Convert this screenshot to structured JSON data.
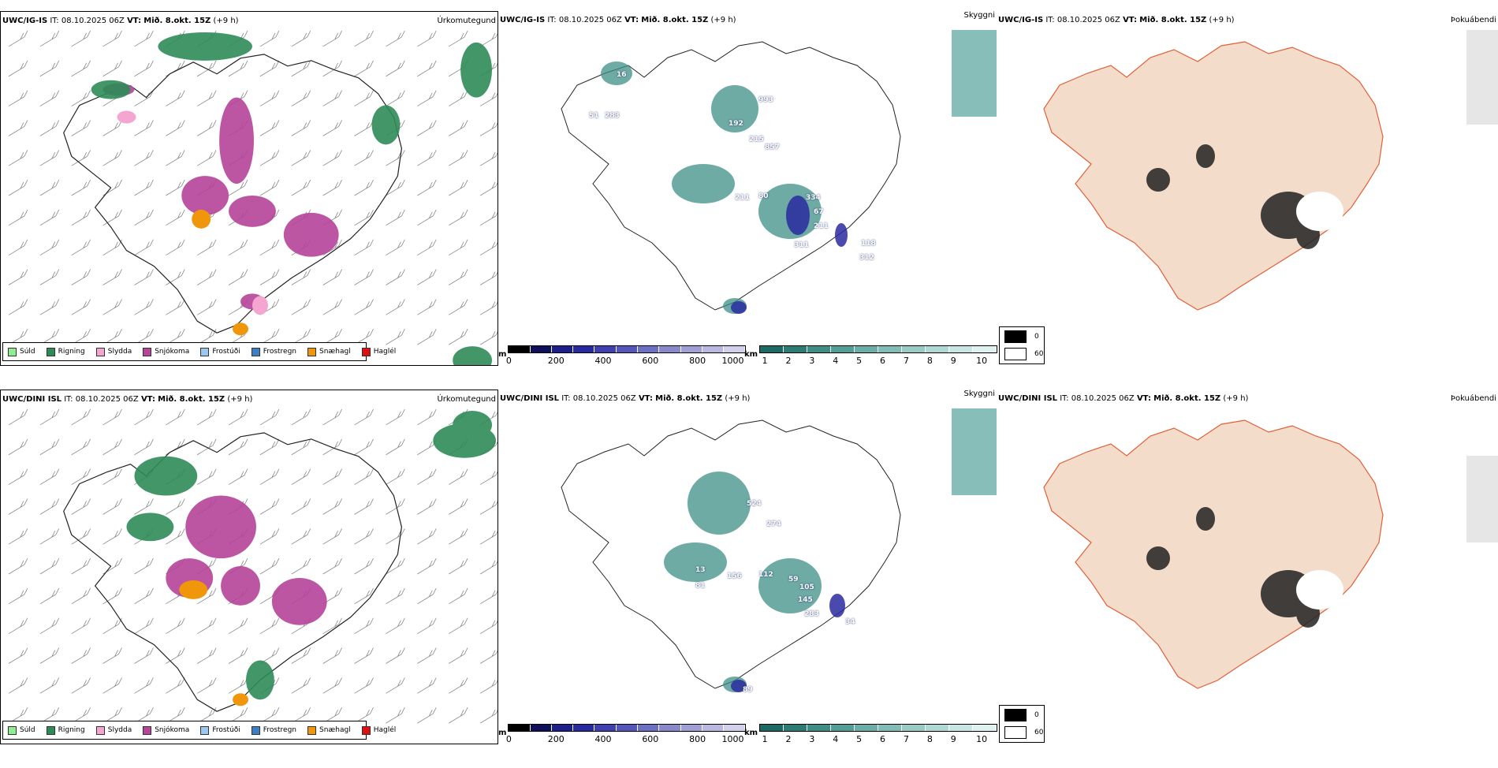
{
  "rows": [
    {
      "model": "UWC/IG-IS",
      "it_label": "IT:",
      "it_value": "08.10.2025 06Z",
      "vt_label": "VT:",
      "vt_value": "Mið. 8.okt. 15Z",
      "lead": "(+9 h)",
      "panels": [
        {
          "title": "Úrkomutegund"
        },
        {
          "title": "Skyggni"
        },
        {
          "title": "Þokuábendi"
        }
      ],
      "labels": [
        "993",
        "192",
        "215",
        "857",
        "211",
        "80",
        "334",
        "67",
        "211",
        "118",
        "312",
        "51",
        "283",
        "311",
        "16"
      ]
    },
    {
      "model": "UWC/DINI ISL",
      "it_label": "IT:",
      "it_value": "08.10.2025 06Z",
      "vt_label": "VT:",
      "vt_value": "Mið. 8.okt. 15Z",
      "lead": "(+9 h)",
      "panels": [
        {
          "title": "Úrkomutegund"
        },
        {
          "title": "Skyggni"
        },
        {
          "title": "Þokuábendi"
        }
      ],
      "labels": [
        "524",
        "274",
        "156",
        "112",
        "59",
        "105",
        "145",
        "283",
        "34",
        "89",
        "81",
        "13"
      ]
    }
  ],
  "precip_legend": [
    {
      "label": "Súld",
      "color": "#90ee90"
    },
    {
      "label": "Rigning",
      "color": "#2e8b57"
    },
    {
      "label": "Slydda",
      "color": "#f4a6d0"
    },
    {
      "label": "Snjókoma",
      "color": "#b5449a"
    },
    {
      "label": "Frostúði",
      "color": "#9cc7f0"
    },
    {
      "label": "Frostregn",
      "color": "#3e7fc4"
    },
    {
      "label": "Snæhagl",
      "color": "#f0960a"
    },
    {
      "label": "Haglél",
      "color": "#e01010"
    }
  ],
  "cloudbase_bar": {
    "unit": "m",
    "ticks": [
      "0",
      "200",
      "400",
      "600",
      "800",
      "1000"
    ],
    "colors": [
      "#000000",
      "#10105a",
      "#1e1e8a",
      "#2a2aa0",
      "#3f3fb0",
      "#5555bb",
      "#6e6ec4",
      "#8888cc",
      "#a0a0d6",
      "#b8b8e0",
      "#d0d0ea"
    ]
  },
  "visibility_bar": {
    "unit": "km",
    "ticks": [
      "1",
      "2",
      "3",
      "4",
      "5",
      "6",
      "7",
      "8",
      "9",
      "10"
    ],
    "colors": [
      "#1a6b63",
      "#2a7d74",
      "#3d8f86",
      "#529f97",
      "#69aea7",
      "#80bdb7",
      "#98cbc6",
      "#b0d9d5",
      "#c8e6e3",
      "#e0f2f0"
    ]
  },
  "fog_legend": [
    {
      "label": "0",
      "color": "#000000"
    },
    {
      "label": "60",
      "color": "#ffffff"
    }
  ]
}
